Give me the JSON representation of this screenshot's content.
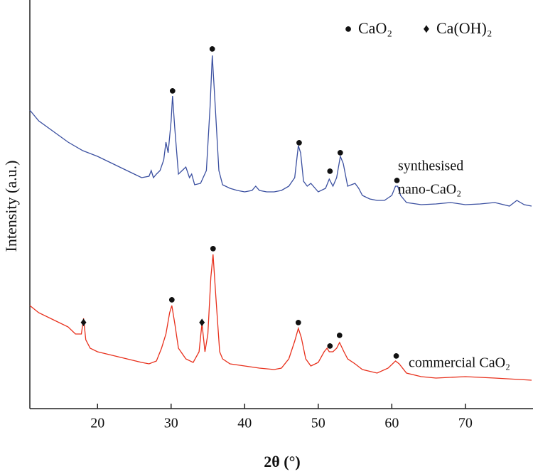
{
  "chart_data": {
    "type": "line",
    "x_label": "2θ (°)",
    "y_label": "Intensity (a.u.)",
    "xlim": [
      10.8,
      79
    ],
    "xticks": [
      20,
      30,
      40,
      50,
      60,
      70
    ],
    "ylim": [
      0,
      575
    ],
    "legend": [
      {
        "symbol": "●",
        "label": "CaO₂"
      },
      {
        "symbol": "♦",
        "label": "Ca(OH)₂"
      }
    ],
    "series": [
      {
        "label_lines": [
          "synthesised",
          "nano-CaO₂"
        ],
        "color": "#3a4fa0",
        "x": [
          10.8,
          12,
          14,
          16,
          18,
          20,
          22,
          24,
          25,
          26,
          27,
          27.3,
          27.6,
          28,
          28.5,
          29,
          29.3,
          29.6,
          30,
          30.2,
          30.5,
          31,
          31.5,
          32,
          32.5,
          32.8,
          33.2,
          34,
          34.8,
          35.3,
          35.6,
          36,
          36.5,
          37,
          38,
          39,
          40,
          41,
          41.5,
          42,
          43,
          44,
          45,
          46,
          46.8,
          47.3,
          47.6,
          48,
          48.5,
          49,
          50,
          51,
          51.5,
          52,
          52.5,
          53,
          53.4,
          54,
          54.5,
          55,
          55.5,
          56,
          57,
          58,
          59,
          60,
          60.5,
          60.8,
          61.2,
          62,
          64,
          66,
          68,
          70,
          72,
          74,
          76,
          77,
          78,
          79
        ],
        "values": [
          420,
          405,
          390,
          375,
          363,
          355,
          345,
          335,
          330,
          325,
          327,
          335,
          325,
          330,
          335,
          350,
          375,
          360,
          405,
          440,
          395,
          330,
          335,
          340,
          325,
          330,
          315,
          317,
          335,
          425,
          497,
          425,
          335,
          315,
          310,
          307,
          305,
          307,
          313,
          307,
          305,
          305,
          307,
          313,
          325,
          370,
          360,
          320,
          313,
          317,
          305,
          310,
          323,
          313,
          325,
          355,
          345,
          313,
          315,
          317,
          310,
          300,
          295,
          293,
          293,
          300,
          313,
          313,
          300,
          290,
          287,
          288,
          290,
          287,
          288,
          290,
          285,
          293,
          287,
          285
        ]
      },
      {
        "label_lines": [
          "commercial CaO₂"
        ],
        "color": "#e8301c",
        "x": [
          10.8,
          12,
          14,
          16,
          17,
          17.8,
          18.1,
          18.4,
          19,
          20,
          22,
          24,
          26,
          27,
          28,
          28.7,
          29.3,
          29.8,
          30.1,
          30.5,
          31,
          32,
          33,
          33.8,
          34.2,
          34.6,
          35,
          35.4,
          35.7,
          36.1,
          36.6,
          37,
          38,
          40,
          42,
          44,
          45,
          46,
          46.8,
          47.3,
          47.7,
          48.3,
          49,
          50,
          50.8,
          51.2,
          51.5,
          52,
          52.5,
          52.9,
          53.5,
          54,
          55,
          56,
          58,
          59.5,
          60.5,
          61,
          62,
          64,
          66,
          70,
          74,
          79
        ],
        "values": [
          145,
          135,
          125,
          115,
          105,
          105,
          127,
          97,
          85,
          80,
          75,
          70,
          65,
          63,
          67,
          85,
          105,
          135,
          145,
          120,
          85,
          70,
          65,
          80,
          120,
          80,
          105,
          185,
          217,
          155,
          80,
          70,
          63,
          60,
          57,
          55,
          57,
          70,
          95,
          113,
          100,
          70,
          60,
          65,
          80,
          85,
          80,
          80,
          85,
          93,
          80,
          70,
          63,
          55,
          50,
          57,
          67,
          63,
          50,
          45,
          43,
          45,
          43,
          40
        ]
      }
    ],
    "annotations": [
      {
        "x": 30.2,
        "y": 446,
        "symbol": "●"
      },
      {
        "x": 35.6,
        "y": 505,
        "symbol": "●"
      },
      {
        "x": 47.4,
        "y": 373,
        "symbol": "●"
      },
      {
        "x": 51.6,
        "y": 333,
        "symbol": "●"
      },
      {
        "x": 53,
        "y": 359,
        "symbol": "●"
      },
      {
        "x": 60.7,
        "y": 320,
        "symbol": "●"
      },
      {
        "x": 30.1,
        "y": 152,
        "symbol": "●"
      },
      {
        "x": 35.7,
        "y": 224,
        "symbol": "●"
      },
      {
        "x": 47.3,
        "y": 120,
        "symbol": "●"
      },
      {
        "x": 51.6,
        "y": 87,
        "symbol": "●"
      },
      {
        "x": 52.9,
        "y": 102,
        "symbol": "●"
      },
      {
        "x": 60.6,
        "y": 73,
        "symbol": "●"
      },
      {
        "x": 18.1,
        "y": 120,
        "symbol": "♦"
      },
      {
        "x": 34.2,
        "y": 120,
        "symbol": "♦"
      }
    ]
  }
}
